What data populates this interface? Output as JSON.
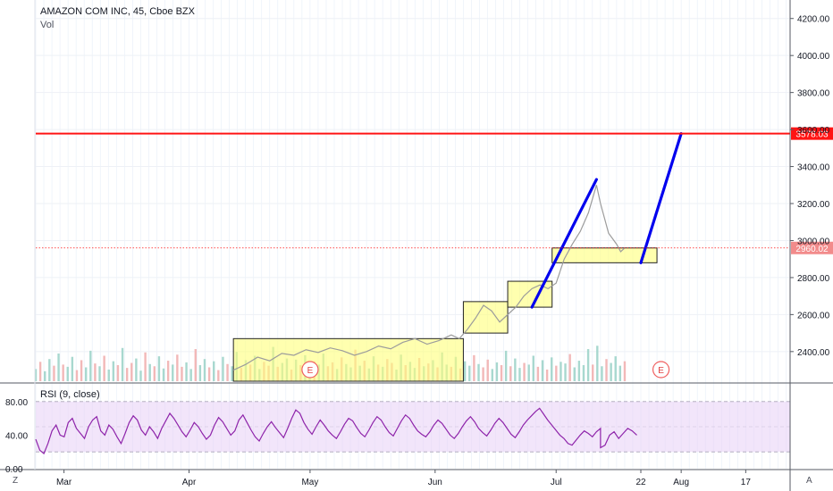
{
  "header": {
    "symbol_line": "AMAZON COM INC, 45, Cboe BZX",
    "volume_label": "Vol"
  },
  "rsi_panel": {
    "label": "RSI (9, close)"
  },
  "corners": {
    "bottom_left": "Z",
    "bottom_right": "A"
  },
  "earnings_markers": [
    {
      "date": "May 01",
      "label": "E"
    },
    {
      "date": "Jul 27",
      "label": "E"
    }
  ],
  "colors": {
    "price_line": "#9c9c9c",
    "trend_line": "#0000ee",
    "target_line": "#ff1414",
    "box_fill": "#ffff7a",
    "box_border": "#222222",
    "rsi_line": "#8e24aa",
    "rsi_band": "#e7d0f5",
    "volume_up": "#a8d8cf",
    "volume_down": "#f2b8b8",
    "last_price_badge": "#f28b8b"
  },
  "chart_data": {
    "type": "line",
    "x_axis": {
      "range": [
        "Feb 22",
        "Aug 28"
      ],
      "tick_labels": [
        {
          "date": "Mar 01",
          "label": "Mar"
        },
        {
          "date": "Apr 01",
          "label": "Apr"
        },
        {
          "date": "May 01",
          "label": "May"
        },
        {
          "date": "Jun 01",
          "label": "Jun"
        },
        {
          "date": "Jul 01",
          "label": "Jul"
        },
        {
          "date": "Jul 22",
          "label": "22"
        },
        {
          "date": "Aug 01",
          "label": "Aug"
        },
        {
          "date": "Aug 17",
          "label": "17"
        }
      ]
    },
    "price_axis": {
      "range": [
        2240,
        4300
      ],
      "ticks": [
        2400,
        2600,
        2800,
        3000,
        3200,
        3400,
        3600,
        3800,
        4000,
        4200
      ],
      "tick_labels": [
        "2400.00",
        "2600.00",
        "2800.00",
        "3000.00",
        "3200.00",
        "3400.00",
        "3600.00",
        "3800.00",
        "4000.00",
        "4200.00"
      ]
    },
    "price_series": [
      {
        "date": "Apr 12",
        "value": 2300
      },
      {
        "date": "Apr 15",
        "value": 2330
      },
      {
        "date": "Apr 18",
        "value": 2370
      },
      {
        "date": "Apr 21",
        "value": 2350
      },
      {
        "date": "Apr 24",
        "value": 2390
      },
      {
        "date": "Apr 27",
        "value": 2380
      },
      {
        "date": "Apr 30",
        "value": 2410
      },
      {
        "date": "May 03",
        "value": 2395
      },
      {
        "date": "May 06",
        "value": 2420
      },
      {
        "date": "May 09",
        "value": 2405
      },
      {
        "date": "May 12",
        "value": 2380
      },
      {
        "date": "May 15",
        "value": 2400
      },
      {
        "date": "May 18",
        "value": 2430
      },
      {
        "date": "May 21",
        "value": 2415
      },
      {
        "date": "May 24",
        "value": 2450
      },
      {
        "date": "May 27",
        "value": 2470
      },
      {
        "date": "May 30",
        "value": 2440
      },
      {
        "date": "Jun 02",
        "value": 2460
      },
      {
        "date": "Jun 05",
        "value": 2490
      },
      {
        "date": "Jun 07",
        "value": 2470
      },
      {
        "date": "Jun 09",
        "value": 2520
      },
      {
        "date": "Jun 11",
        "value": 2580
      },
      {
        "date": "Jun 13",
        "value": 2650
      },
      {
        "date": "Jun 15",
        "value": 2620
      },
      {
        "date": "Jun 17",
        "value": 2560
      },
      {
        "date": "Jun 19",
        "value": 2600
      },
      {
        "date": "Jun 21",
        "value": 2640
      },
      {
        "date": "Jun 23",
        "value": 2700
      },
      {
        "date": "Jun 25",
        "value": 2740
      },
      {
        "date": "Jun 27",
        "value": 2760
      },
      {
        "date": "Jun 29",
        "value": 2740
      },
      {
        "date": "Jul 01",
        "value": 2770
      },
      {
        "date": "Jul 03",
        "value": 2900
      },
      {
        "date": "Jul 05",
        "value": 2980
      },
      {
        "date": "Jul 07",
        "value": 3050
      },
      {
        "date": "Jul 09",
        "value": 3150
      },
      {
        "date": "Jul 11",
        "value": 3300
      },
      {
        "date": "Jul 12",
        "value": 3200
      },
      {
        "date": "Jul 13",
        "value": 3120
      },
      {
        "date": "Jul 14",
        "value": 3040
      },
      {
        "date": "Jul 15",
        "value": 3010
      },
      {
        "date": "Jul 16",
        "value": 2980
      },
      {
        "date": "Jul 17",
        "value": 2940
      },
      {
        "date": "Jul 18",
        "value": 2960
      }
    ],
    "consolidation_boxes": [
      {
        "from": "Apr 12",
        "to": "Jun 08",
        "low": 2240,
        "high": 2470
      },
      {
        "from": "Jun 08",
        "to": "Jun 19",
        "low": 2500,
        "high": 2670
      },
      {
        "from": "Jun 19",
        "to": "Jun 30",
        "low": 2640,
        "high": 2780
      },
      {
        "from": "Jun 30",
        "to": "Jul 26",
        "low": 2880,
        "high": 2960
      }
    ],
    "trend_lines": [
      {
        "from": {
          "date": "Jun 25",
          "value": 2640
        },
        "to": {
          "date": "Jul 11",
          "value": 3330
        }
      },
      {
        "from": {
          "date": "Jul 22",
          "value": 2880
        },
        "to": {
          "date": "Aug 01",
          "value": 3578.03
        }
      }
    ],
    "target_level": {
      "value": 3578.03,
      "label": "3578.03"
    },
    "last_price": {
      "value": 2960.02,
      "label": "2960.02"
    },
    "volume": {
      "from": "Feb 22",
      "to": "Jul 18",
      "bars": 130,
      "min": 8,
      "max": 75,
      "values": [
        22,
        35,
        18,
        40,
        28,
        50,
        30,
        26,
        44,
        20,
        38,
        25,
        55,
        32,
        27,
        46,
        21,
        36,
        29,
        60,
        24,
        33,
        41,
        19,
        52,
        31,
        27,
        45,
        23,
        37,
        30,
        48,
        26,
        34,
        22,
        58,
        29,
        40,
        25,
        36,
        20,
        44,
        31,
        27,
        53,
        24,
        38,
        30,
        46,
        22,
        35,
        28,
        62,
        26,
        33,
        41,
        21,
        39,
        29,
        47,
        24,
        36,
        30,
        50,
        27,
        34,
        22,
        43,
        31,
        25,
        57,
        28,
        37,
        23,
        45,
        30,
        26,
        40,
        33,
        21,
        48,
        29,
        35,
        24,
        42,
        27,
        32,
        38,
        25,
        52,
        30,
        26,
        44,
        23,
        36,
        28,
        47,
        31,
        25,
        39,
        22,
        34,
        29,
        55,
        27,
        41,
        24,
        33,
        30,
        46,
        26,
        38,
        21,
        43,
        28,
        35,
        32,
        49,
        25,
        37,
        29,
        58,
        30,
        64,
        27,
        40,
        33,
        45,
        28,
        36
      ],
      "up": [
        1,
        0,
        1,
        1,
        0,
        1,
        0,
        1,
        1,
        0,
        0,
        1,
        1,
        0,
        1,
        0,
        1,
        1,
        0,
        1,
        0,
        0,
        1,
        1,
        0,
        1,
        0,
        1,
        1,
        0,
        1,
        0,
        0,
        1,
        1,
        0,
        1,
        1,
        0,
        1,
        0,
        1,
        0,
        1,
        1,
        0,
        1,
        0,
        1,
        1,
        0,
        0,
        1,
        0,
        1,
        1,
        0,
        1,
        0,
        1,
        1,
        0,
        1,
        1,
        0,
        0,
        1,
        0,
        1,
        1,
        0,
        1,
        0,
        1,
        1,
        0,
        1,
        0,
        0,
        1,
        1,
        0,
        1,
        1,
        0,
        1,
        0,
        1,
        0,
        1,
        1,
        0,
        1,
        0,
        1,
        1,
        0,
        1,
        0,
        0,
        1,
        1,
        0,
        1,
        0,
        1,
        1,
        0,
        1,
        1,
        0,
        1,
        0,
        1,
        0,
        1,
        1,
        0,
        1,
        1,
        1,
        1,
        0,
        1,
        1,
        0,
        1,
        1,
        1,
        0
      ]
    },
    "rsi": {
      "period": 9,
      "range": [
        0,
        100
      ],
      "band": [
        20,
        80
      ],
      "tick_labels": [
        "80.00",
        "40.00",
        "0.00"
      ],
      "ticks": [
        80,
        40,
        0
      ],
      "from": "Feb 22",
      "to": "Jul 21",
      "values": [
        35,
        22,
        18,
        30,
        45,
        52,
        40,
        38,
        55,
        60,
        48,
        42,
        36,
        50,
        58,
        62,
        45,
        40,
        52,
        47,
        38,
        30,
        42,
        55,
        63,
        58,
        46,
        40,
        50,
        44,
        36,
        48,
        57,
        66,
        60,
        52,
        44,
        38,
        46,
        55,
        50,
        42,
        35,
        40,
        52,
        61,
        56,
        48,
        40,
        45,
        58,
        64,
        55,
        46,
        38,
        33,
        42,
        50,
        56,
        49,
        43,
        37,
        48,
        60,
        70,
        66,
        55,
        47,
        41,
        50,
        58,
        52,
        45,
        40,
        36,
        44,
        53,
        60,
        57,
        49,
        42,
        38,
        46,
        55,
        62,
        58,
        50,
        43,
        39,
        48,
        57,
        64,
        60,
        52,
        45,
        41,
        38,
        44,
        52,
        58,
        54,
        47,
        40,
        36,
        42,
        50,
        57,
        62,
        56,
        48,
        43,
        39,
        46,
        54,
        60,
        55,
        48,
        41,
        37,
        44,
        52,
        58,
        63,
        68,
        72,
        65,
        58,
        52,
        46,
        40,
        36,
        30,
        28,
        34,
        40,
        45,
        42,
        38,
        44,
        48
      ],
      "rsi_tail_start": "Jul 12",
      "rsi_tail": [
        25,
        28,
        40,
        44,
        36,
        42,
        48,
        45,
        40
      ]
    }
  }
}
